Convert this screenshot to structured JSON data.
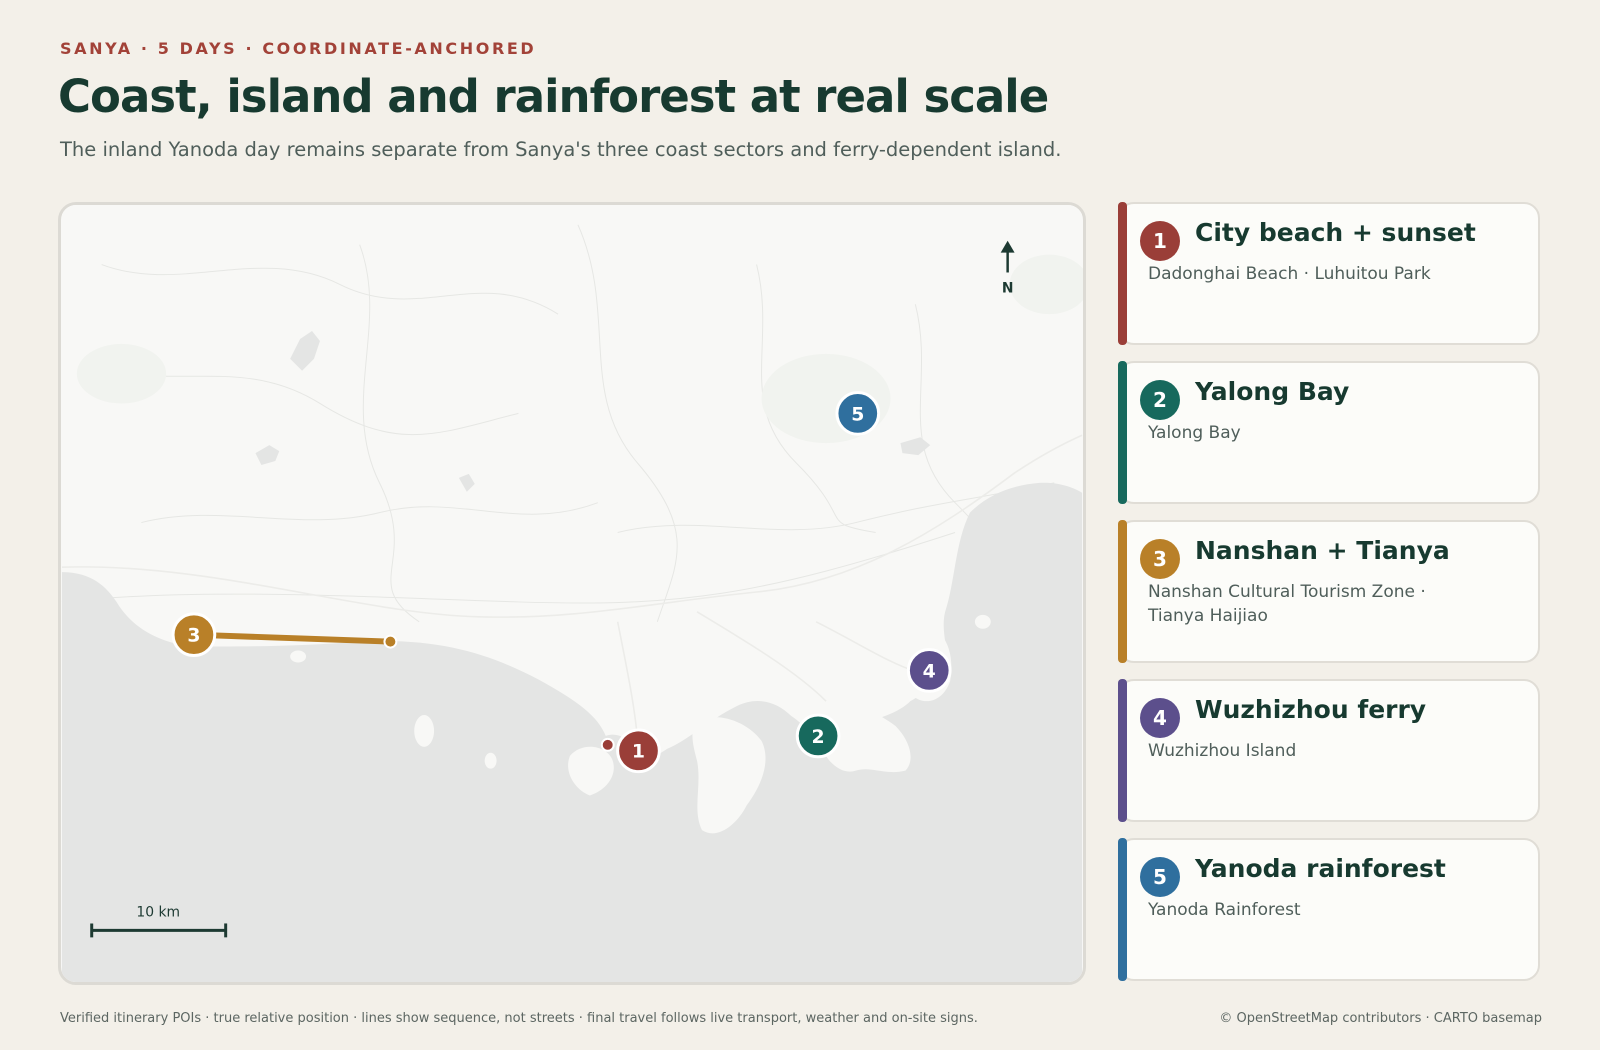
{
  "header": {
    "eyebrow": "SANYA · 5 DAYS · COORDINATE-ANCHORED",
    "title": "Coast, island and rainforest at real scale",
    "subtitle": "The inland Yanoda day remains separate from Sanya's three coast sectors and ferry-dependent island."
  },
  "map": {
    "north_label": "N",
    "scale_label": "10 km",
    "colors": {
      "land": "#f8f8f6",
      "water": "#e4e5e4",
      "route": "#b98028",
      "marker_stroke": "#ffffff"
    },
    "markers": [
      {
        "num": "1",
        "color": "#9a3e38"
      },
      {
        "num": "2",
        "color": "#17695d"
      },
      {
        "num": "3",
        "color": "#b98028"
      },
      {
        "num": "4",
        "color": "#5c4f8c"
      },
      {
        "num": "5",
        "color": "#2f6f9e"
      }
    ]
  },
  "days": [
    {
      "num": "1",
      "title": "City beach + sunset",
      "places": "Dadonghai Beach · Luhuitou Park",
      "color": "#9a3e38"
    },
    {
      "num": "2",
      "title": "Yalong Bay",
      "places": "Yalong Bay",
      "color": "#17695d"
    },
    {
      "num": "3",
      "title": "Nanshan + Tianya",
      "places": "Nanshan Cultural Tourism Zone · Tianya Haijiao",
      "color": "#b98028"
    },
    {
      "num": "4",
      "title": "Wuzhizhou ferry",
      "places": "Wuzhizhou Island",
      "color": "#5c4f8c"
    },
    {
      "num": "5",
      "title": "Yanoda rainforest",
      "places": "Yanoda Rainforest",
      "color": "#2f6f9e"
    }
  ],
  "footer": {
    "note": "Verified itinerary POIs · true relative position · lines show sequence, not streets · final travel follows live transport, weather and on-site signs.",
    "credit": "© OpenStreetMap contributors · CARTO basemap"
  }
}
